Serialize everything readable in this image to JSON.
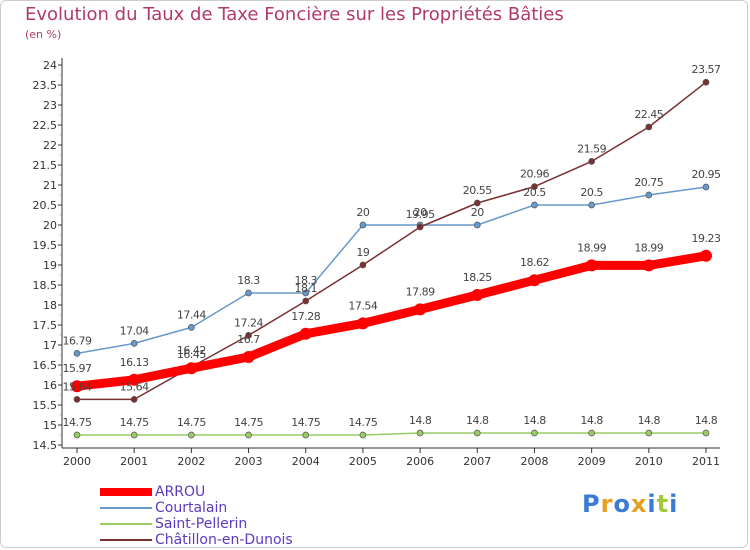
{
  "chart_data": {
    "type": "line",
    "title": "Evolution du Taux de Taxe Foncière sur les Propriétés Bâties",
    "ylabel": "(en %)",
    "xlabel": "",
    "categories": [
      "2000",
      "2001",
      "2002",
      "2003",
      "2004",
      "2005",
      "2006",
      "2007",
      "2008",
      "2009",
      "2010",
      "2011"
    ],
    "ylim": [
      14.5,
      24
    ],
    "yticks": [
      "14.5",
      "15",
      "15.5",
      "16",
      "16.5",
      "17",
      "17.5",
      "18",
      "18.5",
      "19",
      "19.5",
      "20",
      "20.5",
      "21",
      "21.5",
      "22",
      "22.5",
      "23",
      "23.5",
      "24"
    ],
    "grid": false,
    "legend_position": "bottom-left",
    "series": [
      {
        "name": "ARROU",
        "color": "#ff0000",
        "values": [
          15.97,
          16.13,
          16.42,
          16.7,
          17.28,
          17.54,
          17.89,
          18.25,
          18.62,
          18.99,
          18.99,
          19.23
        ],
        "labels": [
          "15.97",
          "16.13",
          "16.42",
          "16.7",
          "17.28",
          "17.54",
          "17.89",
          "18.25",
          "18.62",
          "18.99",
          "18.99",
          "19.23"
        ]
      },
      {
        "name": "Courtalain",
        "color": "#6699cc",
        "values": [
          16.79,
          17.04,
          17.44,
          18.3,
          18.3,
          20,
          20,
          20,
          20.5,
          20.5,
          20.75,
          20.95
        ],
        "labels": [
          "16.79",
          "17.04",
          "17.44",
          "18.3",
          "18.3",
          "20",
          "20",
          "20",
          "20.5",
          "20.5",
          "20.75",
          "20.95"
        ]
      },
      {
        "name": "Saint-Pellerin",
        "color": "#99cc66",
        "values": [
          14.75,
          14.75,
          14.75,
          14.75,
          14.75,
          14.75,
          14.8,
          14.8,
          14.8,
          14.8,
          14.8,
          14.8
        ],
        "labels": [
          "14.75",
          "14.75",
          "14.75",
          "14.75",
          "14.75",
          "14.75",
          "14.8",
          "14.8",
          "14.8",
          "14.8",
          "14.8",
          "14.8"
        ]
      },
      {
        "name": "Châtillon-en-Dunois",
        "color": "#7a3030",
        "values": [
          15.64,
          15.64,
          16.45,
          17.24,
          18.1,
          19,
          19.95,
          20.55,
          20.96,
          21.59,
          22.45,
          23.57
        ],
        "labels": [
          "15.64",
          "15.64",
          "16.45",
          "17.24",
          "18.1",
          "19",
          "19.95",
          "20.55",
          "20.96",
          "21.59",
          "22.45",
          "23.57"
        ]
      }
    ]
  },
  "legend": {
    "items": [
      {
        "label": "ARROU",
        "color": "#ff0000"
      },
      {
        "label": "Courtalain",
        "color": "#6699cc"
      },
      {
        "label": "Saint-Pellerin",
        "color": "#99cc66"
      },
      {
        "label": "Châtillon-en-Dunois",
        "color": "#7a3030"
      }
    ]
  },
  "logo": {
    "text": "Proxiti",
    "colors": [
      "#3a7bd5",
      "#e8a020",
      "#3a7bd5",
      "#e8a020",
      "#3a7bd5",
      "#9fcc3a",
      "#3a7bd5"
    ]
  }
}
